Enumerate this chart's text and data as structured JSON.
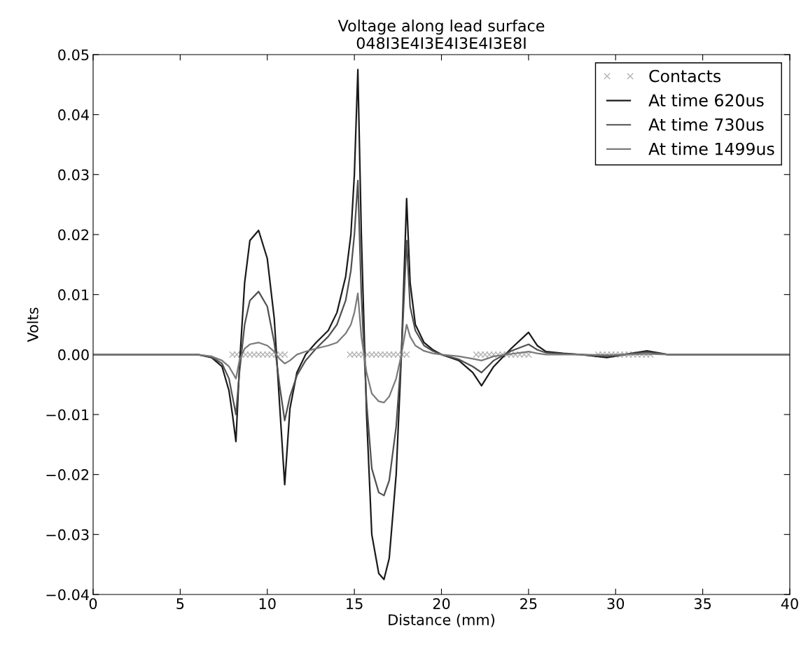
{
  "chart_data": {
    "type": "line",
    "title": "Voltage along lead surface\n048I3E4I3E4I3E4I3E8I",
    "xlabel": "Distance (mm)",
    "ylabel": "Volts",
    "xlim": [
      0,
      40
    ],
    "ylim": [
      -0.04,
      0.05
    ],
    "xticks": [
      0,
      5,
      10,
      15,
      20,
      25,
      30,
      35,
      40
    ],
    "yticks": [
      {
        "value": -0.04,
        "label": "−0.04"
      },
      {
        "value": -0.03,
        "label": "−0.03"
      },
      {
        "value": -0.02,
        "label": "−0.02"
      },
      {
        "value": -0.01,
        "label": "−0.01"
      },
      {
        "value": 0,
        "label": "0.00"
      },
      {
        "value": 0.01,
        "label": "0.01"
      },
      {
        "value": 0.02,
        "label": "0.02"
      },
      {
        "value": 0.03,
        "label": "0.03"
      },
      {
        "value": 0.04,
        "label": "0.04"
      },
      {
        "value": 0.05,
        "label": "0.05"
      }
    ],
    "grid": false,
    "legend": "top right",
    "series": [
      {
        "name": "Contacts",
        "type": "scatter",
        "marker": "cross",
        "color": "#b4b4b4",
        "x": [
          8.0,
          8.25,
          8.5,
          8.75,
          9.0,
          9.25,
          9.5,
          9.75,
          10.0,
          10.25,
          10.5,
          10.75,
          11.0,
          14.75,
          15.0,
          15.25,
          15.5,
          15.75,
          16.0,
          16.25,
          16.5,
          16.75,
          17.0,
          17.25,
          17.5,
          17.75,
          18.0,
          22.0,
          22.25,
          22.5,
          22.75,
          23.0,
          23.25,
          23.5,
          23.75,
          24.0,
          24.25,
          24.5,
          24.75,
          25.0,
          29.0,
          29.25,
          29.5,
          29.75,
          30.0,
          30.25,
          30.5,
          30.75,
          31.0,
          31.25,
          31.5,
          31.75,
          32.0
        ],
        "values": [
          0,
          0,
          0,
          0,
          0,
          0,
          0,
          0,
          0,
          0,
          0,
          0,
          0,
          0,
          0,
          0,
          0,
          0,
          0,
          0,
          0,
          0,
          0,
          0,
          0,
          0,
          0,
          0,
          0,
          0,
          0,
          0,
          0,
          0,
          0,
          0,
          0,
          0,
          0,
          0,
          0,
          0,
          0,
          0,
          0,
          0,
          0,
          0,
          0,
          0,
          0,
          0,
          0
        ]
      },
      {
        "name": "At time 620us",
        "color": "#1a1a1a",
        "x": [
          0,
          6,
          6.8,
          7.4,
          7.8,
          8.0,
          8.2,
          8.4,
          8.7,
          9.0,
          9.5,
          10.0,
          10.4,
          10.7,
          11.0,
          11.3,
          11.7,
          12.2,
          12.8,
          13.5,
          14.0,
          14.5,
          14.8,
          15.0,
          15.2,
          15.4,
          15.7,
          16.0,
          16.4,
          16.7,
          17.0,
          17.4,
          17.7,
          18.0,
          18.2,
          18.5,
          19.0,
          19.5,
          20,
          21,
          21.8,
          22.3,
          23,
          24,
          25,
          25.5,
          26,
          27,
          28,
          29.5,
          30.5,
          31.8,
          33,
          35,
          40
        ],
        "values": [
          0,
          0,
          -0.0005,
          -0.002,
          -0.006,
          -0.01,
          -0.0145,
          -0.002,
          0.012,
          0.019,
          0.0207,
          0.016,
          0.006,
          -0.008,
          -0.0217,
          -0.009,
          -0.003,
          0,
          0.002,
          0.004,
          0.007,
          0.013,
          0.02,
          0.03,
          0.0475,
          0.02,
          -0.01,
          -0.03,
          -0.0365,
          -0.0375,
          -0.034,
          -0.02,
          0.0,
          0.026,
          0.012,
          0.005,
          0.002,
          0.0008,
          0,
          -0.001,
          -0.003,
          -0.0052,
          -0.002,
          0.001,
          0.0037,
          0.0015,
          0.0005,
          0.0002,
          0,
          -0.0005,
          0,
          0.0006,
          0,
          0,
          0
        ]
      },
      {
        "name": "At time 730us",
        "color": "#505050",
        "x": [
          0,
          6,
          6.8,
          7.4,
          7.8,
          8.0,
          8.2,
          8.4,
          8.7,
          9.0,
          9.5,
          10.0,
          10.4,
          10.7,
          11.0,
          11.3,
          11.7,
          12.2,
          12.8,
          13.5,
          14.0,
          14.5,
          14.8,
          15.0,
          15.2,
          15.4,
          15.7,
          16.0,
          16.4,
          16.7,
          17.0,
          17.4,
          17.7,
          18.0,
          18.2,
          18.5,
          19.0,
          19.5,
          20,
          21,
          21.8,
          22.3,
          23,
          24,
          25,
          25.5,
          26,
          27,
          28,
          29.5,
          30.5,
          31.8,
          33,
          35,
          40
        ],
        "values": [
          0,
          0,
          -0.0004,
          -0.0015,
          -0.004,
          -0.007,
          -0.01,
          -0.003,
          0.005,
          0.009,
          0.0105,
          0.008,
          0.002,
          -0.005,
          -0.011,
          -0.007,
          -0.0035,
          -0.001,
          0.001,
          0.003,
          0.005,
          0.009,
          0.014,
          0.02,
          0.029,
          0.01,
          -0.008,
          -0.019,
          -0.023,
          -0.0235,
          -0.021,
          -0.012,
          0.0,
          0.019,
          0.008,
          0.004,
          0.0015,
          0.0006,
          0,
          -0.0008,
          -0.002,
          -0.003,
          -0.001,
          0.0006,
          0.0017,
          0.0008,
          0.0003,
          0.0001,
          0,
          -0.0003,
          0,
          0.0004,
          0,
          0,
          0
        ]
      },
      {
        "name": "At time 1499us",
        "color": "#7a7a7a",
        "x": [
          0,
          6,
          6.8,
          7.4,
          7.8,
          8.0,
          8.2,
          8.4,
          8.7,
          9.0,
          9.5,
          10.0,
          10.4,
          10.7,
          11.0,
          11.3,
          11.7,
          12.2,
          12.8,
          13.5,
          14.0,
          14.5,
          14.8,
          15.0,
          15.2,
          15.4,
          15.7,
          16.0,
          16.4,
          16.7,
          17.0,
          17.4,
          17.7,
          18.0,
          18.2,
          18.5,
          19.0,
          19.5,
          20,
          21,
          21.8,
          22.3,
          23,
          24,
          25,
          25.5,
          26,
          27,
          28,
          29.5,
          30.5,
          31.8,
          33,
          35,
          40
        ],
        "values": [
          0,
          0,
          -0.0003,
          -0.001,
          -0.002,
          -0.003,
          -0.004,
          -0.001,
          0.001,
          0.0017,
          0.002,
          0.0015,
          0.0005,
          -0.0007,
          -0.0015,
          -0.001,
          0,
          0.0005,
          0.001,
          0.0015,
          0.002,
          0.0035,
          0.005,
          0.007,
          0.0102,
          0.003,
          -0.003,
          -0.0065,
          -0.0078,
          -0.008,
          -0.007,
          -0.004,
          0.0,
          0.005,
          0.003,
          0.0015,
          0.0006,
          0.0002,
          0,
          -0.0003,
          -0.0007,
          -0.001,
          -0.0003,
          0.0001,
          0.0005,
          0.0002,
          0,
          0,
          0,
          -0.0001,
          0,
          0.0001,
          0,
          0,
          0
        ]
      }
    ]
  }
}
